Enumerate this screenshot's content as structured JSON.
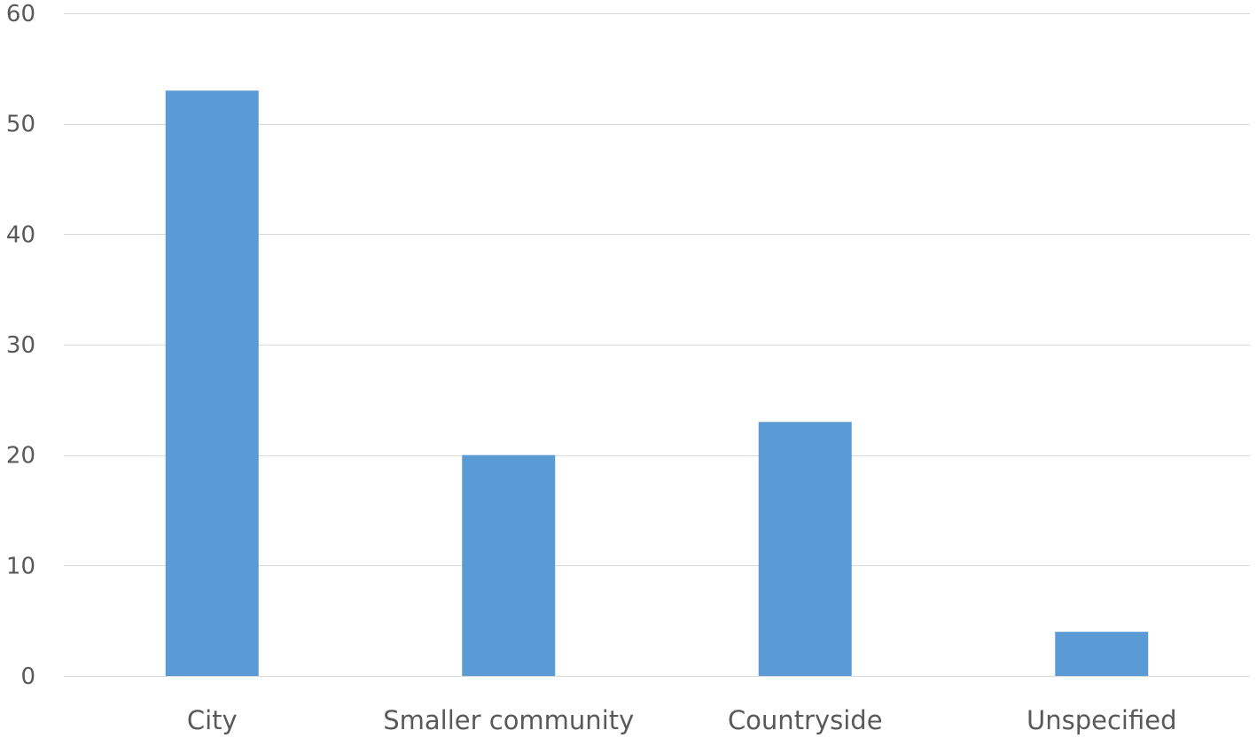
{
  "chart_data": {
    "type": "bar",
    "title": "",
    "xlabel": "",
    "ylabel": "",
    "categories": [
      "City",
      "Smaller community",
      "Countryside",
      "Unspecified"
    ],
    "values": [
      53,
      20,
      23,
      4
    ],
    "ylim": [
      0,
      60
    ],
    "yticks": [
      0,
      10,
      20,
      30,
      40,
      50,
      60
    ],
    "grid": true,
    "legend": "none",
    "bar_color": "#5b9bd5",
    "grid_color": "#d9d9d9",
    "label_color": "#595959"
  }
}
